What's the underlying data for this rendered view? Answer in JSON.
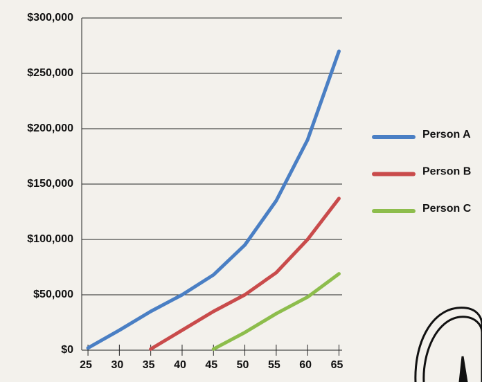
{
  "chart_data": {
    "type": "line",
    "x": [
      25,
      30,
      35,
      40,
      45,
      50,
      55,
      60,
      65
    ],
    "series": [
      {
        "name": "Person A",
        "color": "#4a7fc4",
        "values": [
          2000,
          18000,
          35000,
          50000,
          68000,
          95000,
          135000,
          190000,
          270000
        ]
      },
      {
        "name": "Person B",
        "color": "#c94b4b",
        "values": [
          null,
          null,
          1000,
          18000,
          35000,
          50000,
          70000,
          100000,
          137000
        ]
      },
      {
        "name": "Person C",
        "color": "#8dbd4c",
        "values": [
          null,
          null,
          null,
          null,
          1000,
          16000,
          33000,
          48000,
          69000
        ]
      }
    ],
    "xlim": [
      24,
      65.5
    ],
    "xticks": [
      25,
      30,
      35,
      40,
      45,
      50,
      55,
      60,
      65
    ],
    "ylim": [
      0,
      300000
    ],
    "yticks": [
      {
        "value": 0,
        "label": "$0"
      },
      {
        "value": 50000,
        "label": "$50,000"
      },
      {
        "value": 100000,
        "label": "$100,000"
      },
      {
        "value": 150000,
        "label": "$150,000"
      },
      {
        "value": 200000,
        "label": "$200,000"
      },
      {
        "value": 250000,
        "label": "$250,000"
      },
      {
        "value": 300000,
        "label": "$300,000"
      }
    ],
    "grid": true,
    "legend": "right"
  }
}
